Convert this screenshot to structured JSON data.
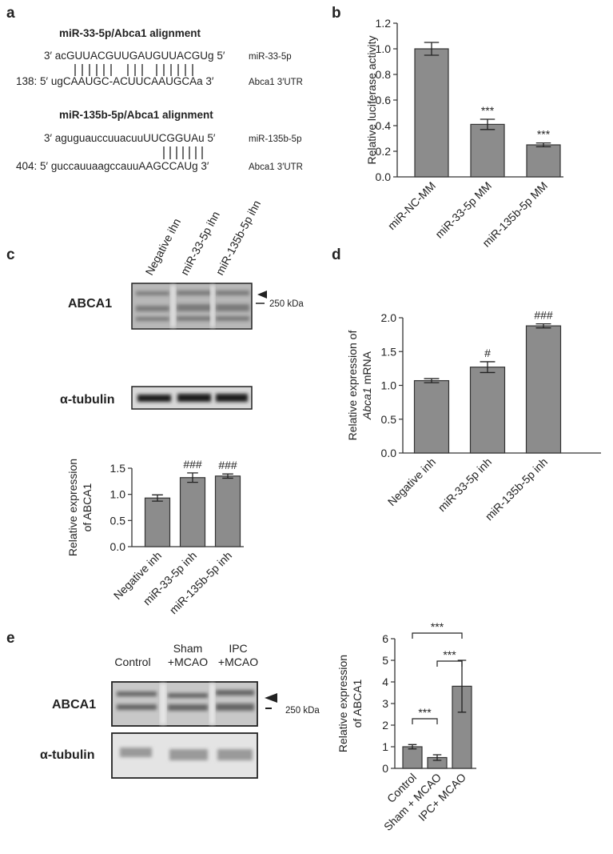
{
  "panel_labels": [
    "a",
    "b",
    "c",
    "d",
    "e"
  ],
  "alignments": [
    {
      "title": "miR-33-5p/Abca1 alignment",
      "mirna_seq": "3′ acGUUACGUUGAUGUUACGUg 5′",
      "mirna_name": "miR-33-5p",
      "utr_seq": "138: 5′ ugCAAUGC-ACUUCAAUGCAa 3′",
      "utr_name": "Abca1 3′UTR"
    },
    {
      "title": "miR-135b-5p/Abca1 alignment",
      "mirna_seq": "3′ aguguauccuuacuuUUCGGUAu 5′",
      "mirna_name": "miR-135b-5p",
      "utr_seq": "404: 5′ guccauuaagccauuAAGCCAUg 3′",
      "utr_name": "Abca1 3′UTR"
    }
  ],
  "blots": [
    {
      "lanes": [
        [
          "Negative ihn"
        ],
        [
          "miR-33-5p ihn"
        ],
        [
          "miR-135b-5p ihn"
        ]
      ],
      "rows": [
        "ABCA1",
        "α-tubulin"
      ],
      "marker": "250 kDa"
    },
    {
      "lanes": [
        [
          "Control"
        ],
        [
          "Sham",
          "+MCAO"
        ],
        [
          "IPC",
          "+MCAO"
        ]
      ],
      "rows": [
        "ABCA1",
        "α-tubulin"
      ],
      "marker": "250 kDa"
    }
  ],
  "chart_data": [
    {
      "type": "bar",
      "y_label": [
        "Relative luciferase activity"
      ],
      "categories": [
        "miR-NC-MM",
        "miR-33-5p MM",
        "miR-135b-5p MM"
      ],
      "values": [
        1.0,
        0.41,
        0.25
      ],
      "errors": [
        0.05,
        0.04,
        0.015
      ],
      "value_annotations": [
        null,
        "***",
        "***"
      ],
      "color": "#8c8c8c",
      "ylim": [
        0,
        1.2
      ],
      "yticks": [
        {
          "value": 0,
          "label": "0.0"
        },
        0.2,
        0.4,
        0.6,
        0.8,
        {
          "value": 1,
          "label": "1.0"
        },
        1.2
      ]
    },
    {
      "type": "bar",
      "y_label": [
        "Relative expression",
        "of ABCA1"
      ],
      "categories": [
        "Negative inh",
        "miR-33-5p inh",
        "miR-135b-5p inh"
      ],
      "values": [
        0.93,
        1.32,
        1.35
      ],
      "errors": [
        0.06,
        0.09,
        0.04
      ],
      "value_annotations": [
        null,
        "###",
        "###"
      ],
      "color": "#8c8c8c",
      "ylim": [
        0,
        1.5
      ],
      "yticks": [
        {
          "value": 0,
          "label": "0.0"
        },
        0.5,
        {
          "value": 1,
          "label": "1.0"
        },
        1.5
      ]
    },
    {
      "type": "bar",
      "y_label": [
        "Relative expression of",
        [
          {
            "text": "Abca1",
            "italic": true
          },
          {
            "text": "mRNA"
          }
        ]
      ],
      "categories": [
        "Negative inh",
        "miR-33-5p inh",
        "miR-135b-5p inh"
      ],
      "values": [
        1.07,
        1.27,
        1.88
      ],
      "errors": [
        0.03,
        0.08,
        0.03
      ],
      "value_annotations": [
        null,
        "#",
        "###"
      ],
      "color": "#8c8c8c",
      "ylim": [
        0,
        2
      ],
      "yticks": [
        {
          "value": 0,
          "label": "0.0"
        },
        0.5,
        {
          "value": 1,
          "label": "1.0"
        },
        1.5,
        {
          "value": 2,
          "label": "2.0"
        }
      ]
    },
    {
      "type": "bar",
      "y_label": [
        "Relative expression",
        "of ABCA1"
      ],
      "categories": [
        "Control",
        "Sham + MCAO",
        "IPC+ MCAO"
      ],
      "values": [
        1.0,
        0.5,
        3.8
      ],
      "errors": [
        0.1,
        0.13,
        1.2
      ],
      "brackets": [
        {
          "between": [
            "Control",
            "Sham + MCAO"
          ],
          "text": "***"
        },
        {
          "between": [
            "Sham + MCAO",
            "IPC+ MCAO"
          ],
          "text": "***"
        },
        {
          "between": [
            "Control",
            "IPC+ MCAO"
          ],
          "text": "***"
        }
      ],
      "color": "#8c8c8c",
      "ylim": [
        0,
        6
      ],
      "yticks": [
        0,
        1,
        2,
        3,
        4,
        5,
        6
      ]
    }
  ]
}
